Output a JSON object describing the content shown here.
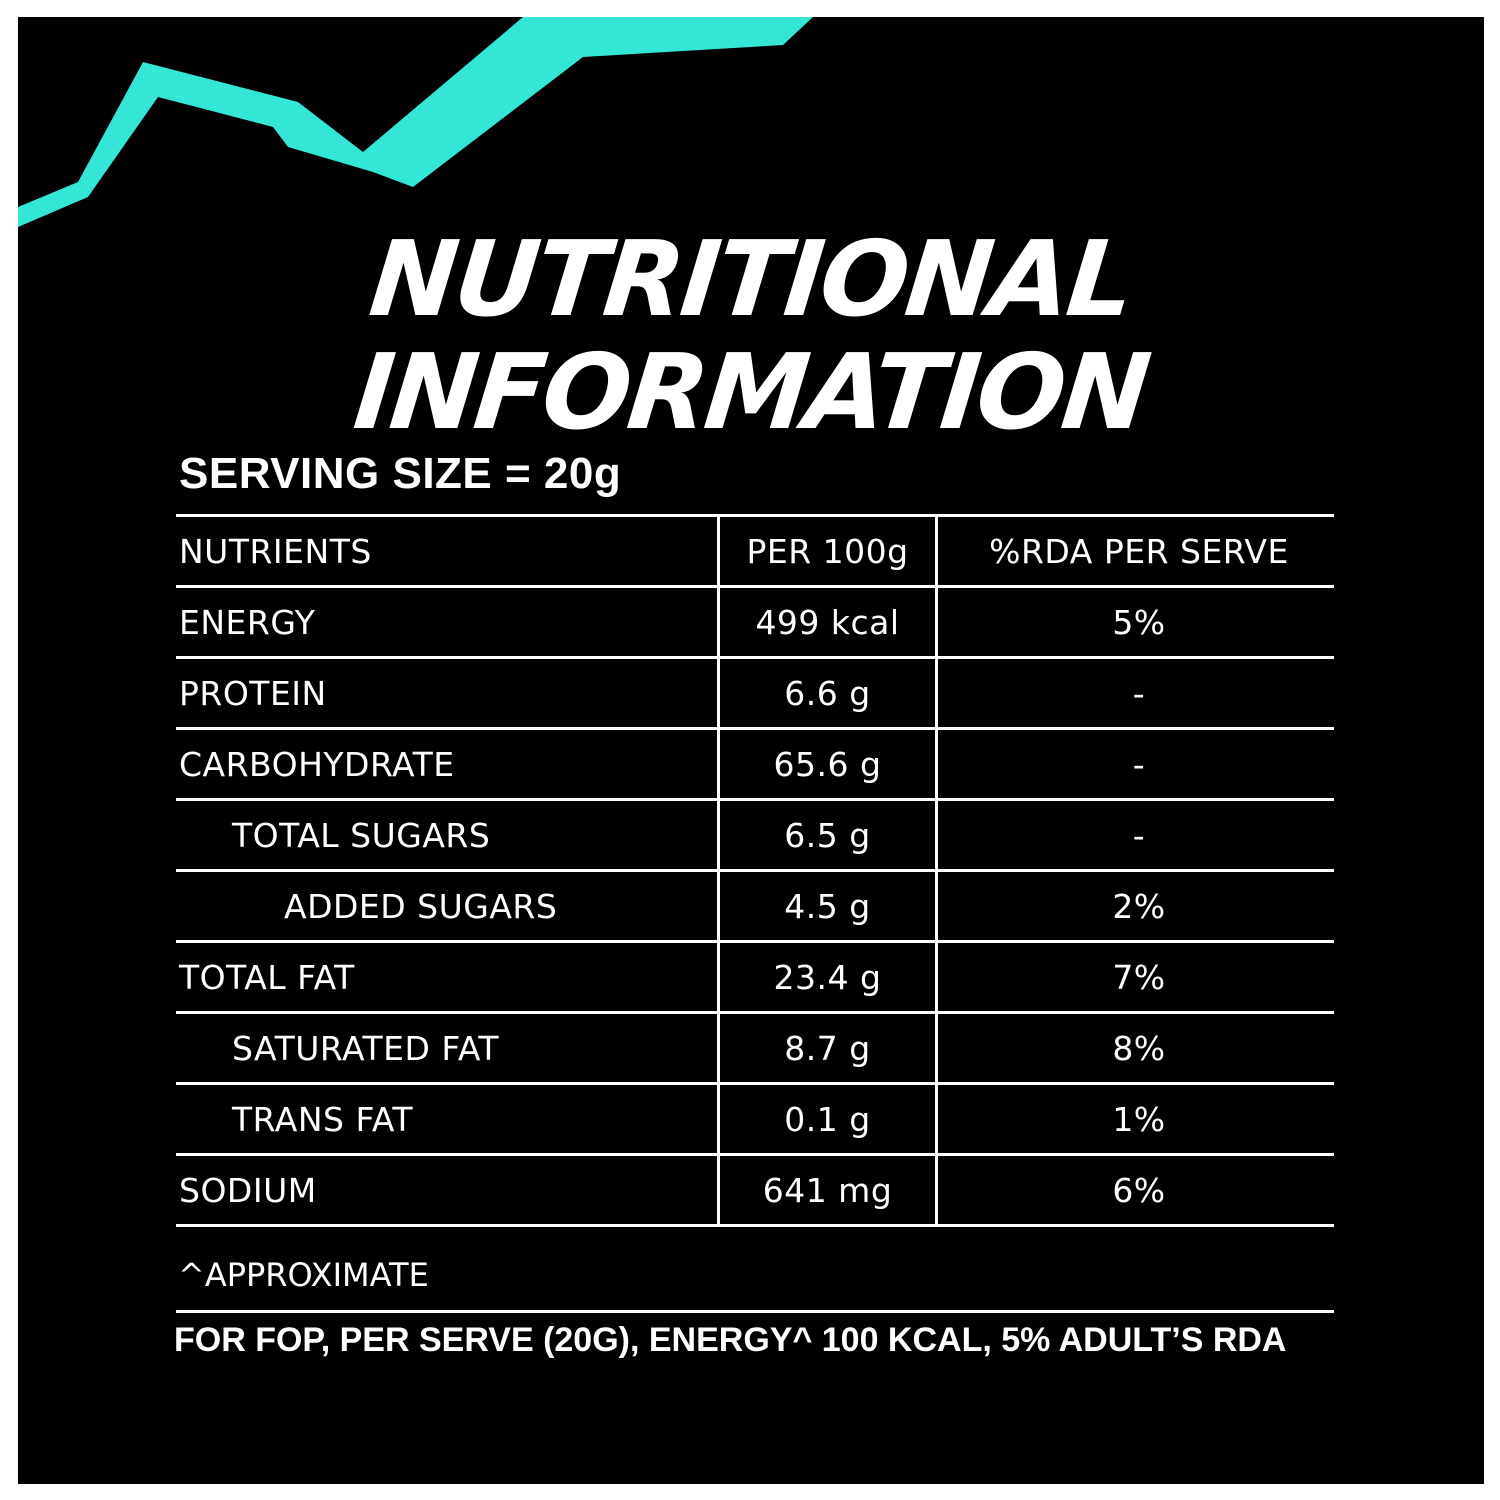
{
  "heading": {
    "line1": "NUTRITIONAL",
    "line2": "INFORMATION"
  },
  "serving_size": "SERVING SIZE = 20g",
  "table": {
    "headers": [
      "NUTRIENTS",
      "PER 100g",
      "%RDA PER SERVE"
    ],
    "rows": [
      {
        "name": "ENERGY",
        "per100g": "499 kcal",
        "rda": "5%",
        "indent": 0
      },
      {
        "name": "PROTEIN",
        "per100g": "6.6 g",
        "rda": "-",
        "indent": 0
      },
      {
        "name": "CARBOHYDRATE",
        "per100g": "65.6 g",
        "rda": "-",
        "indent": 0
      },
      {
        "name": "TOTAL SUGARS",
        "per100g": "6.5 g",
        "rda": "-",
        "indent": 1
      },
      {
        "name": "ADDED SUGARS",
        "per100g": "4.5 g",
        "rda": "2%",
        "indent": 2
      },
      {
        "name": "TOTAL FAT",
        "per100g": "23.4 g",
        "rda": "7%",
        "indent": 0
      },
      {
        "name": "SATURATED FAT",
        "per100g": "8.7 g",
        "rda": "8%",
        "indent": 1
      },
      {
        "name": "TRANS FAT",
        "per100g": "0.1 g",
        "rda": "1%",
        "indent": 1
      },
      {
        "name": "SODIUM",
        "per100g": "641 mg",
        "rda": "6%",
        "indent": 0
      }
    ]
  },
  "footnote": "^APPROXIMATE",
  "fop_statement": "FOR FOP, PER SERVE (20G), ENERGY^ 100 KCAL, 5% ADULT’S RDA",
  "colors": {
    "background": "#000000",
    "text": "#ffffff",
    "accent": "#33e6d6"
  }
}
